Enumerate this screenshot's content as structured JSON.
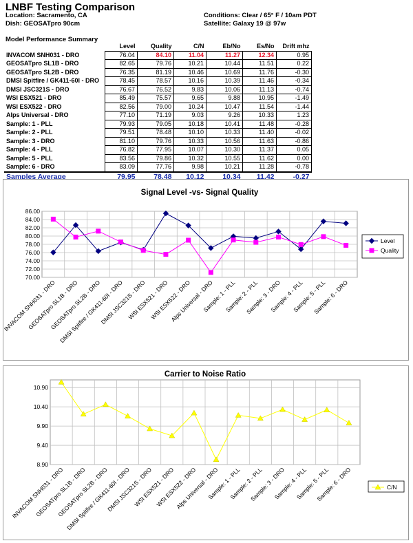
{
  "header": {
    "title": "LNBF Testing Comparison",
    "location": "Location: Sacramento, CA",
    "dish": "Dish: GEOSATpro 90cm",
    "conditions": "Conditions: Clear / 65° F / 10am PDT",
    "satellite": "Satellite: Galaxy 19 @ 97w"
  },
  "summary": {
    "title": "Model Performance Summary",
    "columns": [
      "Level",
      "Quality",
      "C/N",
      "Eb/No",
      "Es/No",
      "Drift mhz"
    ],
    "rows": [
      {
        "name": "INVACOM SNH031 - DRO",
        "values": [
          "76.04",
          "84.10",
          "11.04",
          "11.27",
          "12.34",
          "0.95"
        ],
        "highlight": [
          false,
          true,
          true,
          true,
          true,
          false
        ]
      },
      {
        "name": "GEOSATpro SL1B - DRO",
        "values": [
          "82.65",
          "79.76",
          "10.21",
          "10.44",
          "11.51",
          "0.22"
        ]
      },
      {
        "name": "GEOSATpro SL2B - DRO",
        "values": [
          "76.35",
          "81.19",
          "10.46",
          "10.69",
          "11.76",
          "-0.30"
        ]
      },
      {
        "name": "DMSI Spitfire / GK411-60I - DRO",
        "values": [
          "78.45",
          "78.57",
          "10.16",
          "10.39",
          "11.46",
          "-0.34"
        ]
      },
      {
        "name": "DMSI JSC321S - DRO",
        "values": [
          "76.67",
          "76.52",
          "9.83",
          "10.06",
          "11.13",
          "-0.74"
        ]
      },
      {
        "name": "WSI ESX521 - DRO",
        "values": [
          "85.49",
          "75.57",
          "9.65",
          "9.88",
          "10.95",
          "-1.49"
        ]
      },
      {
        "name": "WSI ESX522 - DRO",
        "values": [
          "82.56",
          "79.00",
          "10.24",
          "10.47",
          "11.54",
          "-1.44"
        ]
      },
      {
        "name": "Alps Universal - DRO",
        "values": [
          "77.10",
          "71.19",
          "9.03",
          "9.26",
          "10.33",
          "1.23"
        ]
      },
      {
        "name": "Sample: 1 - PLL",
        "values": [
          "79.93",
          "79.05",
          "10.18",
          "10.41",
          "11.48",
          "-0.28"
        ]
      },
      {
        "name": "Sample: 2 - PLL",
        "values": [
          "79.51",
          "78.48",
          "10.10",
          "10.33",
          "11.40",
          "-0.02"
        ]
      },
      {
        "name": "Sample: 3 - DRO",
        "values": [
          "81.10",
          "79.76",
          "10.33",
          "10.56",
          "11.63",
          "-0.86"
        ]
      },
      {
        "name": "Sample: 4 - PLL",
        "values": [
          "76.82",
          "77.95",
          "10.07",
          "10.30",
          "11.37",
          "0.05"
        ]
      },
      {
        "name": "Sample: 5 - PLL",
        "values": [
          "83.56",
          "79.86",
          "10.32",
          "10.55",
          "11.62",
          "0.00"
        ]
      },
      {
        "name": "Sample: 6 - DRO",
        "values": [
          "83.09",
          "77.76",
          "9.98",
          "10.21",
          "11.28",
          "-0.78"
        ]
      }
    ],
    "average": {
      "name": "Samples Average",
      "values": [
        "79.95",
        "78.48",
        "10.12",
        "10.34",
        "11.42",
        "-0.27"
      ]
    }
  },
  "chart_data": [
    {
      "type": "line",
      "title": "Signal Level -vs- Signal Quality",
      "categories": [
        "INVACOM SNH031 - DRO",
        "GEOSATpro SL1B - DRO",
        "GEOSATpro SL2B - DRO",
        "DMSI Spitfire / GK411-60I - DRO",
        "DMSI JSC321S - DRO",
        "WSI ESX521 - DRO",
        "WSI ESX522 - DRO",
        "Alps Universal - DRO",
        "Sample: 1 - PLL",
        "Sample: 2 - PLL",
        "Sample: 3 - DRO",
        "Sample: 4 - PLL",
        "Sample: 5 - PLL",
        "Sample: 6 - DRO"
      ],
      "series": [
        {
          "name": "Level",
          "color": "#000080",
          "marker": "diamond",
          "values": [
            76.04,
            82.65,
            76.35,
            78.45,
            76.67,
            85.49,
            82.56,
            77.1,
            79.93,
            79.51,
            81.1,
            76.82,
            83.56,
            83.09
          ]
        },
        {
          "name": "Quality",
          "color": "#ff00ff",
          "marker": "square",
          "values": [
            84.1,
            79.76,
            81.19,
            78.57,
            76.52,
            75.57,
            79.0,
            71.19,
            79.05,
            78.48,
            79.76,
            77.95,
            79.86,
            77.76
          ]
        }
      ],
      "ylim": [
        70,
        86
      ],
      "yticks": [
        "70.00",
        "72.00",
        "74.00",
        "76.00",
        "78.00",
        "80.00",
        "82.00",
        "84.00",
        "86.00"
      ],
      "grid": true,
      "legend": "right"
    },
    {
      "type": "line",
      "title": "Carrier to Noise Ratio",
      "categories": [
        "INVACOM SNH031 - DRO",
        "GEOSATpro SL1B - DRO",
        "GEOSATpro SL2B - DRO",
        "DMSI Spitfire / GK411-60I - DRO",
        "DMSI JSC321S - DRO",
        "WSI ESX521 - DRO",
        "WSI ESX522 - DRO",
        "Alps Universal - DRO",
        "Sample: 1 - PLL",
        "Sample: 2 - PLL",
        "Sample: 3 - DRO",
        "Sample: 4 - PLL",
        "Sample: 5 - PLL",
        "Sample: 6 - DRO"
      ],
      "series": [
        {
          "name": "C/N",
          "color": "#ffff00",
          "marker": "triangle",
          "values": [
            11.04,
            10.21,
            10.46,
            10.16,
            9.83,
            9.65,
            10.24,
            9.03,
            10.18,
            10.1,
            10.33,
            10.07,
            10.32,
            9.98
          ]
        }
      ],
      "ylim": [
        8.9,
        11.1
      ],
      "yticks": [
        "8.90",
        "9.40",
        "9.90",
        "10.40",
        "10.90"
      ],
      "grid": true,
      "legend": "bottom-right"
    }
  ]
}
